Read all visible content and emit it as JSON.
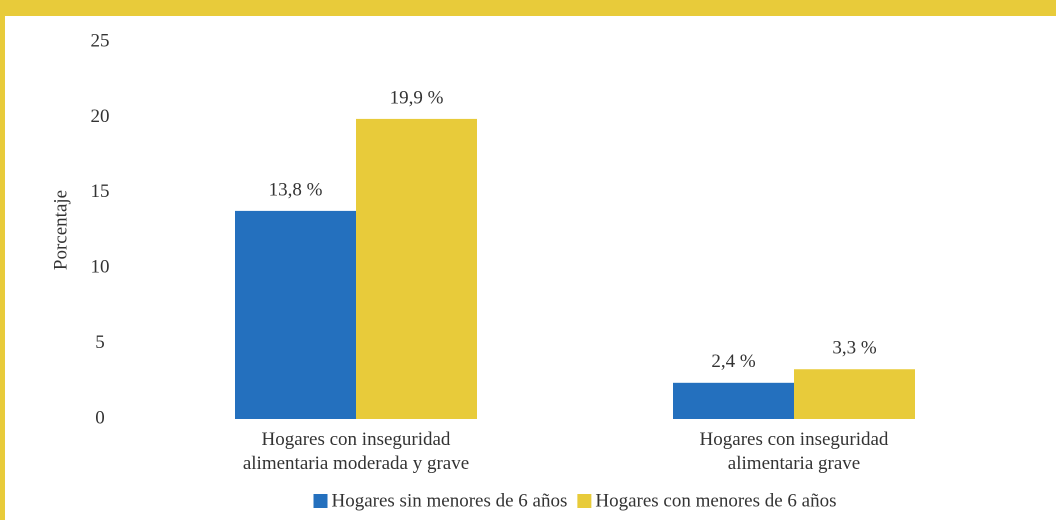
{
  "chart_data": {
    "type": "bar",
    "categories": [
      [
        "Hogares con inseguridad",
        "alimentaria moderada y grave"
      ],
      [
        "Hogares con inseguridad",
        "alimentaria grave"
      ]
    ],
    "series": [
      {
        "name": "Hogares sin menores de 6 años",
        "color": "#2470be",
        "values": [
          13.8,
          2.4
        ],
        "value_labels": [
          "13,8 %",
          "2,4 %"
        ]
      },
      {
        "name": "Hogares con menores de 6 años",
        "color": "#e8cb3a",
        "values": [
          19.9,
          3.3
        ],
        "value_labels": [
          "19,9 %",
          "3,3 %"
        ]
      }
    ],
    "ylabel": "Porcentaje",
    "ylim": [
      0,
      25
    ],
    "yticks": [
      0,
      5,
      10,
      15,
      20,
      25
    ],
    "grid": false,
    "legend": "bottom"
  }
}
